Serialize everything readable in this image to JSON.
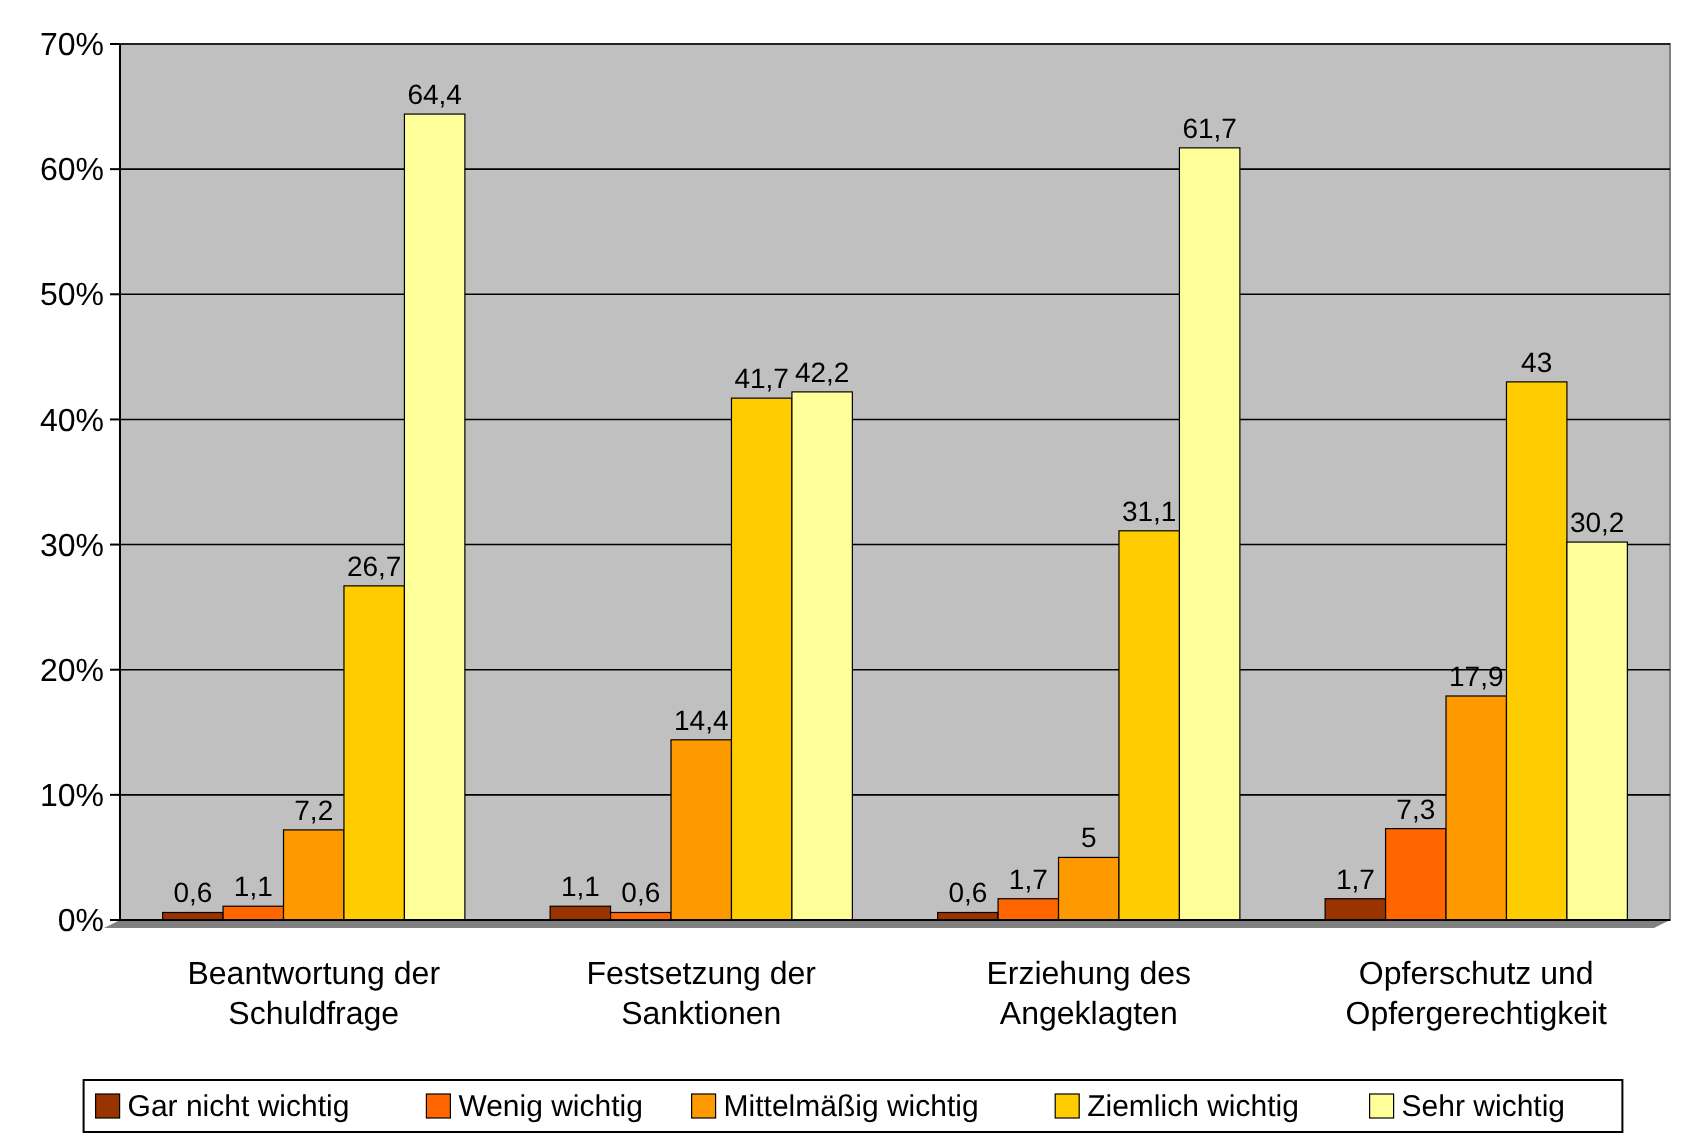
{
  "chart_data": {
    "type": "bar",
    "categories": [
      "Beantwortung der Schuldfrage",
      "Festsetzung der Sanktionen",
      "Erziehung des Angeklagten",
      "Opferschutz und Opfergerechtigkeit"
    ],
    "series": [
      {
        "name": "Gar nicht wichtig",
        "color": "#993300",
        "values": [
          0.6,
          1.1,
          0.6,
          1.7
        ],
        "value_labels": [
          "0,6",
          "1,1",
          "0,6",
          "1,7"
        ]
      },
      {
        "name": "Wenig wichtig",
        "color": "#ff6600",
        "values": [
          1.1,
          0.6,
          1.7,
          7.3
        ],
        "value_labels": [
          "1,1",
          "0,6",
          "1,7",
          "7,3"
        ]
      },
      {
        "name": "Mittelmäßig wichtig",
        "color": "#ff9900",
        "values": [
          7.2,
          14.4,
          5,
          17.9
        ],
        "value_labels": [
          "7,2",
          "14,4",
          "5",
          "17,9"
        ]
      },
      {
        "name": "Ziemlich wichtig",
        "color": "#ffcc00",
        "values": [
          26.7,
          41.7,
          31.1,
          43
        ],
        "value_labels": [
          "26,7",
          "41,7",
          "31,1",
          "43"
        ]
      },
      {
        "name": "Sehr wichtig",
        "color": "#ffff99",
        "values": [
          64.4,
          42.2,
          61.7,
          30.2
        ],
        "value_labels": [
          "64,4",
          "42,2",
          "61,7",
          "30,2"
        ]
      }
    ],
    "ylim": [
      0,
      70
    ],
    "yticks": [
      {
        "value": 0,
        "label": "0%"
      },
      {
        "value": 10,
        "label": "10%"
      },
      {
        "value": 20,
        "label": "20%"
      },
      {
        "value": 30,
        "label": "30%"
      },
      {
        "value": 40,
        "label": "40%"
      },
      {
        "value": 50,
        "label": "50%"
      },
      {
        "value": 60,
        "label": "60%"
      },
      {
        "value": 70,
        "label": "70%"
      }
    ],
    "grid": "y",
    "legend": "bottom"
  }
}
